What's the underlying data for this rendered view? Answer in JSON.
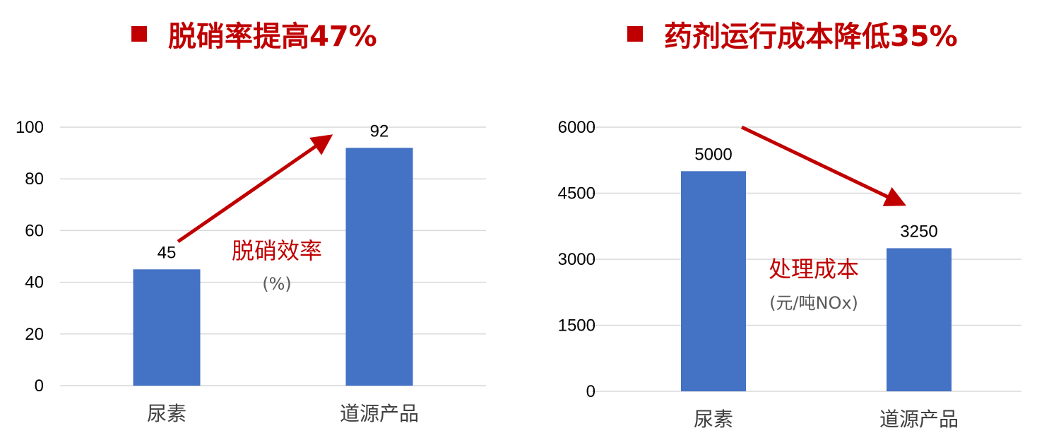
{
  "headings": {
    "left": "脱硝率提高47%",
    "right": "药剂运行成本降低35%"
  },
  "colors": {
    "bar": "#4472c4",
    "accent": "#c00000",
    "grid": "#d9d9d9"
  },
  "chart_data": [
    {
      "type": "bar",
      "categories": [
        "尿素",
        "道源产品"
      ],
      "values": [
        45,
        92
      ],
      "ylim": [
        0,
        100
      ],
      "yticks": [
        0,
        20,
        40,
        60,
        80,
        100
      ],
      "metric_label": "脱硝效率",
      "unit_label": "(%)",
      "trend": "up",
      "grid": true
    },
    {
      "type": "bar",
      "categories": [
        "尿素",
        "道源产品"
      ],
      "values": [
        5000,
        3250
      ],
      "ylim": [
        0,
        6000
      ],
      "yticks": [
        0,
        1500,
        3000,
        4500,
        6000
      ],
      "metric_label": "处理成本",
      "unit_label": "(元/吨NOx)",
      "trend": "down",
      "grid": true
    }
  ]
}
